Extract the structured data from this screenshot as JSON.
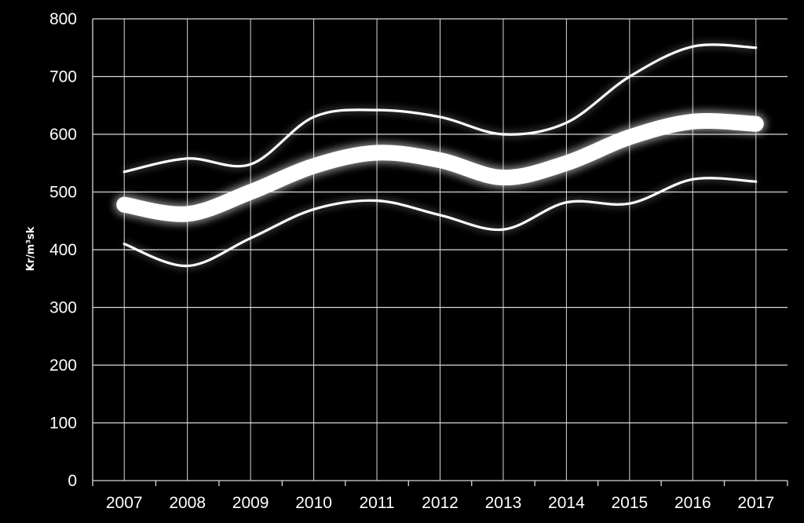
{
  "chart_data": {
    "type": "line",
    "title": "",
    "xlabel": "",
    "ylabel": "Kr/m³sk",
    "ylim": [
      0,
      800
    ],
    "y_ticks": [
      0,
      100,
      200,
      300,
      400,
      500,
      600,
      700,
      800
    ],
    "grid": true,
    "legend": "none",
    "categories": [
      "2007",
      "2008",
      "2009",
      "2010",
      "2011",
      "2012",
      "2013",
      "2014",
      "2015",
      "2016",
      "2017"
    ],
    "series": [
      {
        "values": [
          535,
          558,
          548,
          630,
          642,
          630,
          600,
          620,
          700,
          752,
          750
        ],
        "color": "#ffffff",
        "style": "thin"
      },
      {
        "values": [
          478,
          462,
          500,
          545,
          568,
          555,
          525,
          550,
          595,
          622,
          618
        ],
        "color": "#ffffff",
        "style": "thick-glow"
      },
      {
        "values": [
          410,
          372,
          420,
          470,
          485,
          460,
          435,
          482,
          480,
          522,
          518
        ],
        "color": "#ffffff",
        "style": "thin"
      }
    ],
    "colors": {
      "background": "#000000",
      "grid": "#d9d9d9",
      "text": "#ffffff"
    }
  }
}
